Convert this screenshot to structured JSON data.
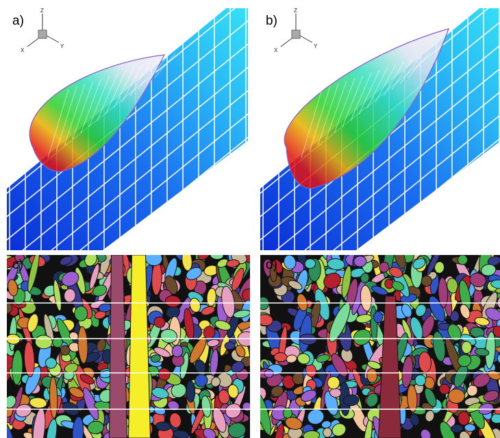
{
  "panels": [
    {
      "label": "a)",
      "axes": {
        "z": "Z",
        "x": "X",
        "y": "Y"
      }
    },
    {
      "label": "b)",
      "axes": {
        "z": "Z",
        "x": "X",
        "y": "Y"
      }
    },
    {
      "label": "c)"
    },
    {
      "label": "d)"
    }
  ]
}
